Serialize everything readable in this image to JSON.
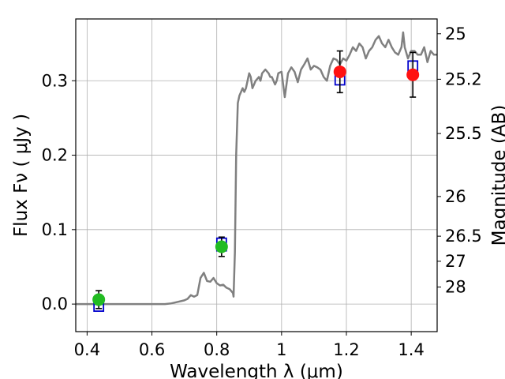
{
  "chart_data": {
    "type": "scatter",
    "xlabel": "Wavelength  λ (μm)",
    "ylabel": "Flux  Fν  ( μJy )",
    "y2label": "Magnitude (AB)",
    "xlim": [
      0.365,
      1.48
    ],
    "ylim": [
      -0.037,
      0.383
    ],
    "grid": true,
    "x_ticks": [
      {
        "value": 0.4,
        "label": "0.4"
      },
      {
        "value": 0.6,
        "label": "0.6"
      },
      {
        "value": 0.8,
        "label": "0.8"
      },
      {
        "value": 1.0,
        "label": "1"
      },
      {
        "value": 1.2,
        "label": "1.2"
      },
      {
        "value": 1.4,
        "label": "1.4"
      }
    ],
    "y_ticks": [
      {
        "value": 0.0,
        "label": "0.0"
      },
      {
        "value": 0.1,
        "label": "0.1"
      },
      {
        "value": 0.2,
        "label": "0.2"
      },
      {
        "value": 0.3,
        "label": "0.3"
      }
    ],
    "y2_ticks": [
      {
        "flux": 0.3631,
        "label": "25"
      },
      {
        "flux": 0.302,
        "label": "25.2"
      },
      {
        "flux": 0.2291,
        "label": "25.5"
      },
      {
        "flux": 0.1445,
        "label": "26"
      },
      {
        "flux": 0.0912,
        "label": "26.5"
      },
      {
        "flux": 0.0575,
        "label": "27"
      },
      {
        "flux": 0.0229,
        "label": "28"
      }
    ],
    "model_spectrum": {
      "color": "#808080",
      "x": [
        0.365,
        0.6,
        0.64,
        0.66,
        0.68,
        0.7,
        0.71,
        0.72,
        0.73,
        0.74,
        0.75,
        0.76,
        0.77,
        0.78,
        0.79,
        0.8,
        0.81,
        0.82,
        0.83,
        0.84,
        0.85,
        0.852,
        0.856,
        0.86,
        0.865,
        0.87,
        0.875,
        0.88,
        0.885,
        0.89,
        0.9,
        0.905,
        0.91,
        0.92,
        0.93,
        0.935,
        0.94,
        0.95,
        0.96,
        0.965,
        0.97,
        0.98,
        0.985,
        0.99,
        1.0,
        1.01,
        1.02,
        1.03,
        1.04,
        1.05,
        1.06,
        1.07,
        1.08,
        1.09,
        1.1,
        1.11,
        1.12,
        1.13,
        1.14,
        1.15,
        1.16,
        1.17,
        1.18,
        1.19,
        1.2,
        1.21,
        1.22,
        1.23,
        1.24,
        1.25,
        1.26,
        1.27,
        1.28,
        1.29,
        1.3,
        1.31,
        1.32,
        1.33,
        1.34,
        1.35,
        1.36,
        1.37,
        1.375,
        1.38,
        1.39,
        1.4,
        1.41,
        1.42,
        1.43,
        1.44,
        1.45,
        1.46,
        1.47,
        1.48
      ],
      "y": [
        0.0,
        0.0,
        0.0,
        0.001,
        0.003,
        0.005,
        0.007,
        0.012,
        0.01,
        0.012,
        0.035,
        0.042,
        0.031,
        0.03,
        0.035,
        0.028,
        0.025,
        0.026,
        0.022,
        0.02,
        0.015,
        0.01,
        0.07,
        0.2,
        0.27,
        0.28,
        0.285,
        0.29,
        0.285,
        0.29,
        0.31,
        0.305,
        0.29,
        0.3,
        0.305,
        0.3,
        0.31,
        0.315,
        0.31,
        0.305,
        0.305,
        0.295,
        0.3,
        0.31,
        0.312,
        0.278,
        0.31,
        0.318,
        0.312,
        0.298,
        0.315,
        0.322,
        0.33,
        0.315,
        0.32,
        0.318,
        0.315,
        0.305,
        0.3,
        0.32,
        0.33,
        0.328,
        0.322,
        0.33,
        0.327,
        0.335,
        0.345,
        0.34,
        0.35,
        0.345,
        0.33,
        0.34,
        0.345,
        0.355,
        0.36,
        0.35,
        0.345,
        0.355,
        0.345,
        0.338,
        0.335,
        0.345,
        0.365,
        0.345,
        0.33,
        0.34,
        0.34,
        0.335,
        0.335,
        0.345,
        0.325,
        0.34,
        0.335,
        0.335
      ]
    },
    "model_photometry": {
      "color": "#0000cc",
      "x": [
        0.436,
        0.815,
        1.18,
        1.405
      ],
      "y": [
        -0.001,
        0.08,
        0.303,
        0.318
      ]
    },
    "observed_photometry": {
      "points": [
        {
          "x": 0.436,
          "y": 0.006,
          "err": 0.012,
          "color": "#22bb22"
        },
        {
          "x": 0.815,
          "y": 0.077,
          "err": 0.013,
          "color": "#22bb22"
        },
        {
          "x": 1.18,
          "y": 0.312,
          "err": 0.028,
          "color": "#ff1111"
        },
        {
          "x": 1.405,
          "y": 0.308,
          "err": 0.03,
          "color": "#ff1111"
        }
      ]
    }
  }
}
